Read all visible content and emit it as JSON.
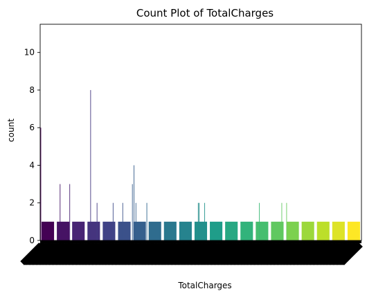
{
  "chart_data": {
    "type": "bar",
    "title": "Count Plot of TotalCharges",
    "xlabel": "TotalCharges",
    "ylabel": "count",
    "ylim": [
      0,
      11.5
    ],
    "yticks": [
      0,
      2,
      4,
      6,
      8,
      10
    ],
    "grid": false,
    "legend": "none",
    "palette": "viridis",
    "palette_colors": [
      "#440154",
      "#482878",
      "#3e4989",
      "#31688e",
      "#26828e",
      "#1f9e89",
      "#35b779",
      "#6ece58",
      "#b5de2b",
      "#fde725"
    ],
    "n_categories": 6531,
    "baseline_count": 1,
    "spikes": [
      {
        "x": 0.0,
        "value": 6
      },
      {
        "x": 0.06,
        "value": 3
      },
      {
        "x": 0.09,
        "value": 3
      },
      {
        "x": 0.155,
        "value": 8
      },
      {
        "x": 0.175,
        "value": 2
      },
      {
        "x": 0.225,
        "value": 2
      },
      {
        "x": 0.255,
        "value": 2
      },
      {
        "x": 0.285,
        "value": 3
      },
      {
        "x": 0.29,
        "value": 4
      },
      {
        "x": 0.296,
        "value": 2
      },
      {
        "x": 0.33,
        "value": 2
      },
      {
        "x": 0.49,
        "value": 2
      },
      {
        "x": 0.493,
        "value": 2
      },
      {
        "x": 0.51,
        "value": 2
      },
      {
        "x": 0.68,
        "value": 2
      },
      {
        "x": 0.75,
        "value": 2
      },
      {
        "x": 0.765,
        "value": 2
      }
    ]
  }
}
